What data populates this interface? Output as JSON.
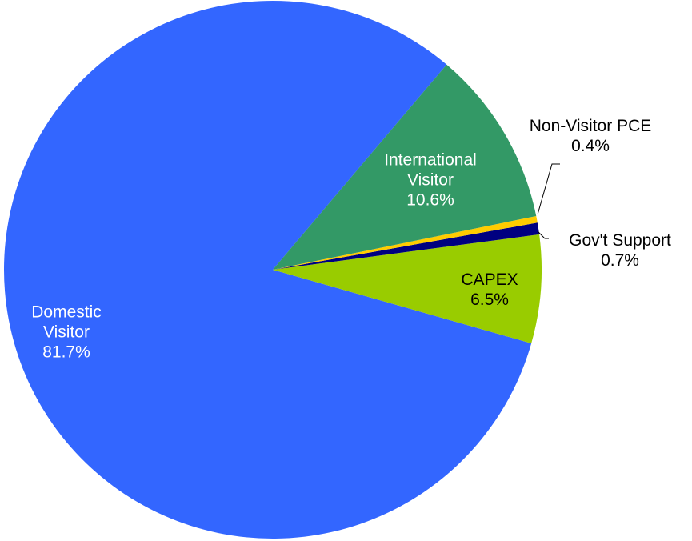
{
  "chart_data": {
    "type": "pie",
    "categories": [
      "International Visitor",
      "Non-Visitor PCE",
      "Gov't Support",
      "CAPEX",
      "Domestic Visitor"
    ],
    "values": [
      10.6,
      0.4,
      0.7,
      6.5,
      81.7
    ],
    "value_labels": [
      "10.6%",
      "0.4%",
      "0.7%",
      "6.5%",
      "81.7%"
    ],
    "colors": [
      "#339966",
      "#ffcc00",
      "#000080",
      "#99cc00",
      "#3366ff"
    ]
  }
}
